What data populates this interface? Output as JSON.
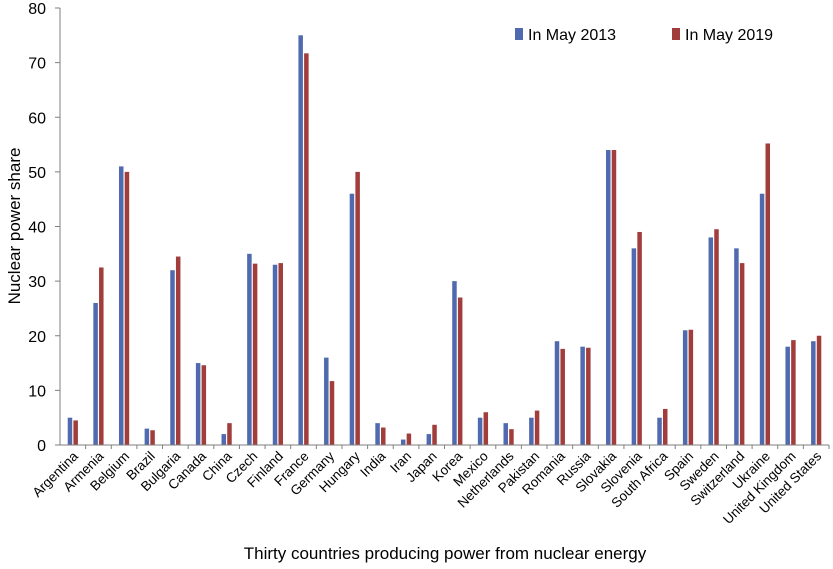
{
  "chart_data": {
    "type": "bar",
    "title": "",
    "xlabel": "Thirty countries producing power from nuclear energy",
    "ylabel": "Nuclear power share",
    "ylim": [
      0,
      80
    ],
    "yticks": [
      0,
      10,
      20,
      30,
      40,
      50,
      60,
      70,
      80
    ],
    "legend_position": "top-right",
    "categories": [
      "Argentina",
      "Armenia",
      "Belgium",
      "Brazil",
      "Bulgaria",
      "Canada",
      "China",
      "Czech",
      "Finland",
      "France",
      "Germany",
      "Hungary",
      "India",
      "Iran",
      "Japan",
      "Korea",
      "Mexico",
      "Netherlands",
      "Pakistan",
      "Romania",
      "Russia",
      "Slovakia",
      "Slovenia",
      "South Africa",
      "Spain",
      "Sweden",
      "Switzerland",
      "Ukraine",
      "United Kingdom",
      "United States"
    ],
    "series": [
      {
        "name": "In May 2013",
        "color": "#4f6aae",
        "values": [
          5,
          26,
          51,
          3,
          32,
          15,
          2,
          35,
          33,
          75,
          16,
          46,
          4,
          1,
          2,
          30,
          5,
          4,
          5,
          19,
          18,
          54,
          36,
          5,
          21,
          38,
          36,
          46,
          18,
          19
        ]
      },
      {
        "name": "In May 2019",
        "color": "#a13d3b",
        "values": [
          4.5,
          32.5,
          50,
          2.7,
          34.5,
          14.6,
          4,
          33.2,
          33.3,
          71.7,
          11.7,
          50,
          3.2,
          2.1,
          3.7,
          27,
          6,
          2.9,
          6.3,
          17.6,
          17.8,
          54,
          39,
          6.6,
          21.1,
          39.5,
          33.3,
          55.2,
          19.2,
          20
        ]
      }
    ]
  }
}
